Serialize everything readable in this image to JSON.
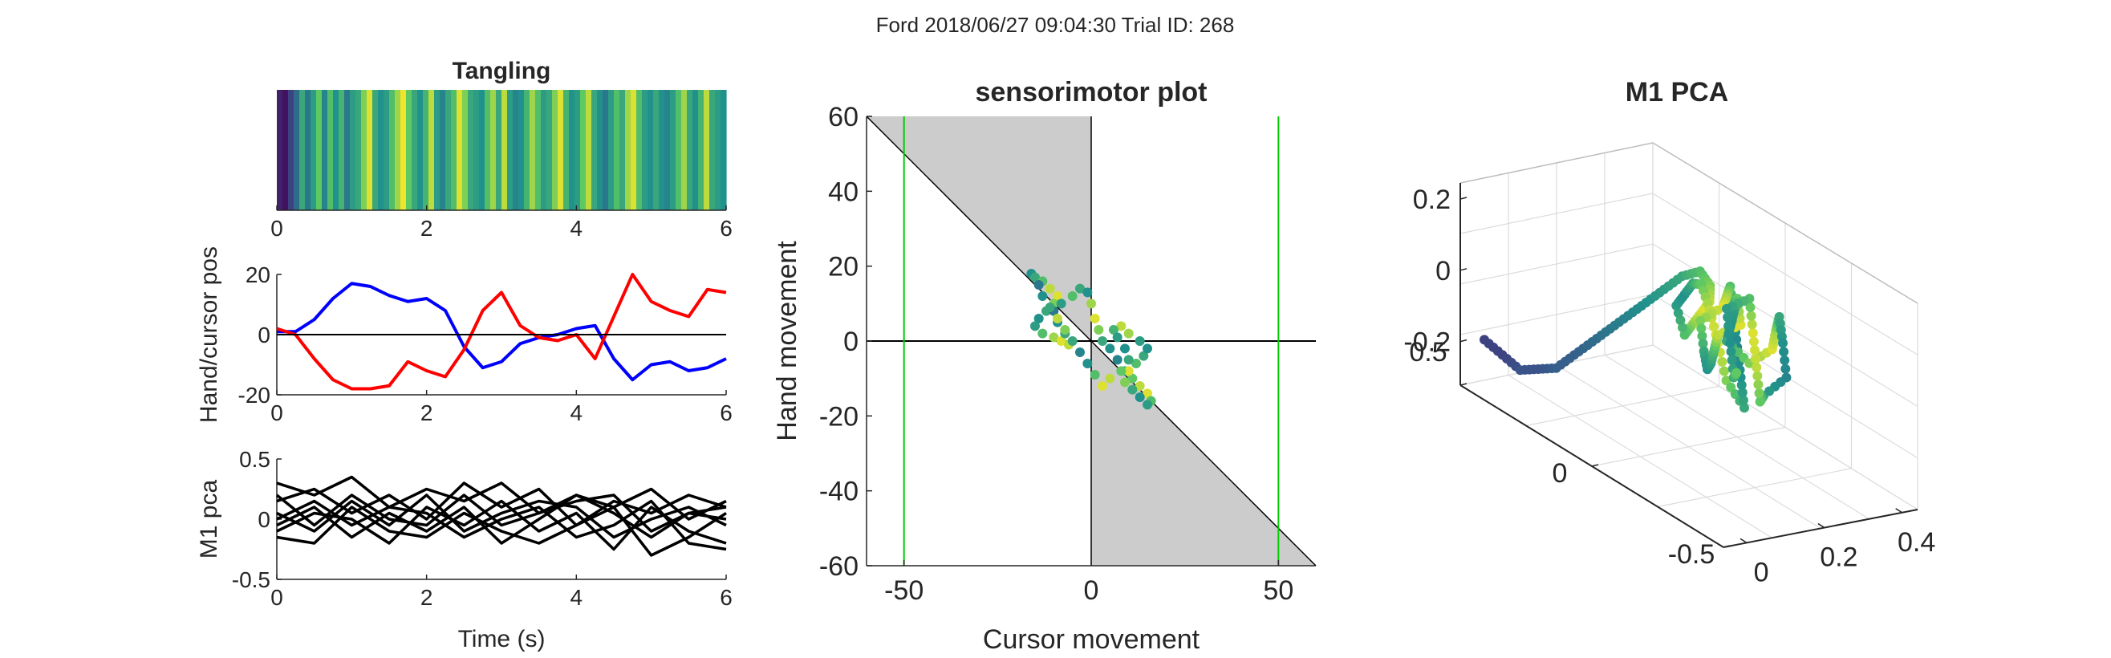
{
  "figure": {
    "title": "Ford 2018/06/27 09:04:30 Trial ID: 268"
  },
  "colors": {
    "hand": "#0000ff",
    "cursor": "#ff0000",
    "zero_line": "#000000",
    "green_lines": "#00cc00",
    "shade": "#cccccc",
    "pca_lines": "#000000",
    "viridis": [
      "#440154",
      "#3b528b",
      "#21918c",
      "#5ec962",
      "#fde725"
    ]
  },
  "chart_data": [
    {
      "id": "tangling",
      "type": "heatmap",
      "title": "Tangling",
      "xlabel": "",
      "ylabel": "",
      "xlim": [
        0,
        6
      ],
      "xticks": [
        "0",
        "2",
        "4",
        "6"
      ],
      "colormap": "viridis",
      "values": [
        0.1,
        0.05,
        0.2,
        0.35,
        0.6,
        0.4,
        0.55,
        0.75,
        0.45,
        0.7,
        0.5,
        0.65,
        0.4,
        0.55,
        0.6,
        0.8,
        0.95,
        0.6,
        0.5,
        0.55,
        0.7,
        0.85,
        0.98,
        0.75,
        0.6,
        0.5,
        0.65,
        0.9,
        0.55,
        0.45,
        0.6,
        0.7,
        0.95,
        0.8,
        0.6,
        0.55,
        0.5,
        0.7,
        0.85,
        0.6,
        0.9,
        0.55,
        0.45,
        0.5,
        0.65,
        0.85,
        0.7,
        0.55,
        0.6,
        0.8,
        0.95,
        0.65,
        0.5,
        0.55,
        0.75,
        0.9,
        0.6,
        0.5,
        0.4,
        0.55,
        0.7,
        0.6,
        0.85,
        0.95,
        0.7,
        0.55,
        0.5,
        0.6,
        0.5,
        0.45,
        0.55,
        0.7,
        0.85,
        0.6,
        0.5,
        0.65,
        0.9,
        0.6,
        0.55,
        0.5
      ]
    },
    {
      "id": "hand-cursor",
      "type": "line",
      "title": "",
      "xlabel": "",
      "ylabel": "Hand/cursor pos",
      "xlim": [
        0,
        6
      ],
      "ylim": [
        -20,
        20
      ],
      "xticks": [
        "0",
        "2",
        "4",
        "6"
      ],
      "yticks": [
        "20",
        "0",
        "-20"
      ],
      "x": [
        0,
        0.25,
        0.5,
        0.75,
        1,
        1.25,
        1.5,
        1.75,
        2,
        2.25,
        2.5,
        2.75,
        3,
        3.25,
        3.5,
        3.75,
        4,
        4.25,
        4.5,
        4.75,
        5,
        5.25,
        5.5,
        5.75,
        6
      ],
      "series": [
        {
          "values": [
            1,
            1,
            5,
            12,
            17,
            16,
            13,
            11,
            12,
            8,
            -4,
            -11,
            -9,
            -3,
            -1,
            0,
            2,
            3,
            -8,
            -15,
            -10,
            -9,
            -12,
            -11,
            -8
          ]
        },
        {
          "values": [
            2,
            0,
            -8,
            -15,
            -18,
            -18,
            -17,
            -9,
            -12,
            -14,
            -5,
            8,
            14,
            3,
            -1,
            -2,
            0,
            -8,
            6,
            20,
            11,
            8,
            6,
            15,
            14
          ]
        }
      ]
    },
    {
      "id": "m1-pca-time",
      "type": "line",
      "title": "",
      "xlabel": "Time (s)",
      "ylabel": "M1 pca",
      "xlim": [
        0,
        6
      ],
      "ylim": [
        -0.5,
        0.5
      ],
      "xticks": [
        "0",
        "2",
        "4",
        "6"
      ],
      "yticks": [
        "0.5",
        "0",
        "-0.5"
      ],
      "x": [
        0,
        0.5,
        1,
        1.5,
        2,
        2.5,
        3,
        3.5,
        4,
        4.5,
        5,
        5.5,
        6
      ],
      "series": [
        {
          "values": [
            0.3,
            0.2,
            0.35,
            0.1,
            0.25,
            0.15,
            0.3,
            0.05,
            0.2,
            0.1,
            0.25,
            0.0,
            0.15
          ]
        },
        {
          "values": [
            0.15,
            0.25,
            0.05,
            0.2,
            0.0,
            0.3,
            0.1,
            0.25,
            -0.05,
            0.15,
            0.05,
            0.2,
            0.1
          ]
        },
        {
          "values": [
            0.05,
            -0.1,
            0.15,
            -0.05,
            0.2,
            -0.1,
            0.05,
            0.15,
            0.1,
            -0.15,
            0.0,
            0.1,
            -0.05
          ]
        },
        {
          "values": [
            -0.05,
            0.1,
            -0.15,
            0.05,
            -0.1,
            0.1,
            -0.2,
            0.0,
            0.2,
            0.05,
            -0.15,
            0.05,
            0.0
          ]
        },
        {
          "values": [
            -0.1,
            0.05,
            0.0,
            -0.2,
            0.1,
            -0.05,
            0.15,
            -0.1,
            0.05,
            -0.25,
            0.1,
            -0.1,
            -0.2
          ]
        },
        {
          "values": [
            -0.15,
            -0.2,
            0.1,
            -0.1,
            -0.15,
            0.05,
            -0.1,
            -0.2,
            -0.05,
            0.1,
            -0.3,
            -0.15,
            0.05
          ]
        },
        {
          "values": [
            0.0,
            0.15,
            -0.05,
            0.1,
            0.05,
            -0.15,
            0.0,
            0.1,
            -0.15,
            -0.05,
            0.15,
            -0.2,
            -0.25
          ]
        },
        {
          "values": [
            0.2,
            -0.05,
            0.2,
            0.0,
            -0.05,
            0.2,
            -0.05,
            0.05,
            0.15,
            0.2,
            -0.1,
            0.05,
            0.1
          ]
        }
      ]
    },
    {
      "id": "sensorimotor",
      "type": "scatter",
      "title": "sensorimotor plot",
      "xlabel": "Cursor movement",
      "ylabel": "Hand movement",
      "xlim": [
        -60,
        60
      ],
      "ylim": [
        -60,
        60
      ],
      "xticks": [
        "-50",
        "0",
        "50"
      ],
      "yticks": [
        "60",
        "40",
        "20",
        "0",
        "-20",
        "-40",
        "-60"
      ],
      "vlines": [
        -50,
        50
      ],
      "x": [
        -16,
        -15,
        -13,
        -11,
        -9,
        -10,
        -12,
        -14,
        -15,
        -13,
        -10,
        -8,
        -6,
        -7,
        -9,
        -10,
        -8,
        -5,
        -3,
        -1,
        0,
        1,
        2,
        3,
        5,
        7,
        9,
        11,
        13,
        15,
        16,
        15,
        13,
        11,
        9,
        10,
        12,
        14,
        15,
        13,
        10,
        8,
        6,
        7,
        9,
        10,
        8,
        5,
        3,
        1,
        -1,
        -3,
        -5,
        -7,
        -9,
        -11,
        -13,
        -14
      ],
      "y": [
        18,
        17,
        16,
        14,
        12,
        10,
        8,
        6,
        4,
        2,
        1,
        0,
        -1,
        2,
        5,
        8,
        10,
        12,
        14,
        13,
        10,
        6,
        3,
        0,
        -2,
        -5,
        -8,
        -10,
        -12,
        -14,
        -16,
        -17,
        -15,
        -13,
        -11,
        -8,
        -6,
        -4,
        -2,
        0,
        2,
        4,
        3,
        1,
        -2,
        -5,
        -8,
        -10,
        -12,
        -9,
        -6,
        -3,
        0,
        3,
        6,
        9,
        12,
        15
      ],
      "c": [
        0.5,
        0.6,
        0.7,
        0.9,
        0.95,
        0.8,
        0.6,
        0.5,
        0.55,
        0.7,
        0.85,
        0.95,
        0.9,
        0.6,
        0.5,
        0.4,
        0.55,
        0.7,
        0.6,
        0.5,
        0.85,
        0.95,
        0.8,
        0.6,
        0.5,
        0.45,
        0.6,
        0.75,
        0.9,
        0.95,
        0.7,
        0.55,
        0.5,
        0.6,
        0.8,
        0.95,
        0.7,
        0.6,
        0.5,
        0.55,
        0.85,
        0.9,
        0.65,
        0.55,
        0.5,
        0.6,
        0.75,
        0.9,
        0.95,
        0.7,
        0.5,
        0.45,
        0.6,
        0.8,
        0.9,
        0.6,
        0.5,
        0.4
      ]
    },
    {
      "id": "m1-pca-3d",
      "type": "scatter",
      "title": "M1 PCA",
      "xlabel": "",
      "ylabel": "",
      "zlabel": "",
      "xlim": [
        -0.5,
        0.5
      ],
      "ylim": [
        0,
        0.4
      ],
      "zlim": [
        -0.3,
        0.2
      ],
      "xticks": [
        "0.5",
        "0",
        "-0.5"
      ],
      "yticks": [
        "0",
        "0.2",
        "0.4"
      ],
      "zticks": [
        "0.2",
        "0",
        "-0.2"
      ],
      "x": [
        0.5,
        0.45,
        0.4,
        0.35,
        0.3,
        0.25,
        0.2,
        0.15,
        0.1,
        0.05,
        0.0,
        -0.05,
        -0.1,
        -0.12,
        -0.1,
        -0.05,
        0.0,
        0.05,
        0.1,
        0.05,
        0.0,
        -0.05,
        -0.1,
        -0.15,
        -0.2,
        -0.25,
        -0.2,
        -0.15,
        -0.1,
        -0.05,
        0.0,
        0.05,
        0.1,
        0.05,
        0.0,
        -0.05,
        -0.1,
        -0.15,
        -0.2,
        -0.15,
        -0.1,
        -0.05,
        0.0,
        -0.05,
        -0.1,
        -0.15,
        -0.2,
        -0.25,
        -0.3,
        -0.25,
        -0.2,
        -0.15,
        -0.1,
        -0.05,
        0.0,
        -0.05,
        -0.1,
        -0.15
      ],
      "y": [
        0.05,
        0.06,
        0.07,
        0.08,
        0.09,
        0.1,
        0.11,
        0.12,
        0.13,
        0.14,
        0.15,
        0.16,
        0.17,
        0.18,
        0.19,
        0.2,
        0.21,
        0.22,
        0.23,
        0.22,
        0.21,
        0.2,
        0.19,
        0.18,
        0.17,
        0.18,
        0.2,
        0.22,
        0.24,
        0.26,
        0.28,
        0.3,
        0.28,
        0.26,
        0.24,
        0.22,
        0.2,
        0.18,
        0.2,
        0.22,
        0.24,
        0.26,
        0.28,
        0.3,
        0.32,
        0.3,
        0.28,
        0.26,
        0.24,
        0.22,
        0.24,
        0.26,
        0.28,
        0.3,
        0.28,
        0.26,
        0.24,
        0.22
      ],
      "z": [
        -0.2,
        -0.22,
        -0.24,
        -0.22,
        -0.2,
        -0.15,
        -0.1,
        -0.05,
        0.0,
        0.05,
        0.1,
        0.15,
        0.18,
        0.15,
        0.1,
        0.05,
        0.0,
        -0.05,
        0.0,
        0.05,
        0.1,
        0.12,
        0.08,
        0.02,
        -0.05,
        -0.1,
        -0.05,
        0.0,
        0.05,
        0.1,
        0.05,
        0.0,
        -0.05,
        -0.1,
        -0.12,
        -0.08,
        -0.02,
        0.04,
        0.08,
        0.12,
        0.06,
        0.0,
        -0.06,
        -0.1,
        -0.05,
        0.02,
        0.08,
        0.04,
        -0.02,
        -0.08,
        -0.12,
        -0.06,
        0.0,
        0.06,
        0.02,
        -0.04,
        -0.1,
        -0.06
      ],
      "c": [
        0.2,
        0.2,
        0.25,
        0.25,
        0.3,
        0.3,
        0.35,
        0.4,
        0.45,
        0.5,
        0.55,
        0.6,
        0.7,
        0.8,
        0.9,
        0.95,
        0.85,
        0.7,
        0.55,
        0.5,
        0.6,
        0.75,
        0.9,
        0.95,
        0.8,
        0.6,
        0.5,
        0.45,
        0.55,
        0.7,
        0.85,
        0.95,
        0.8,
        0.6,
        0.5,
        0.55,
        0.7,
        0.9,
        0.95,
        0.75,
        0.55,
        0.5,
        0.6,
        0.8,
        0.95,
        0.85,
        0.6,
        0.5,
        0.45,
        0.55,
        0.75,
        0.9,
        0.95,
        0.7,
        0.55,
        0.5,
        0.6,
        0.8
      ]
    }
  ]
}
